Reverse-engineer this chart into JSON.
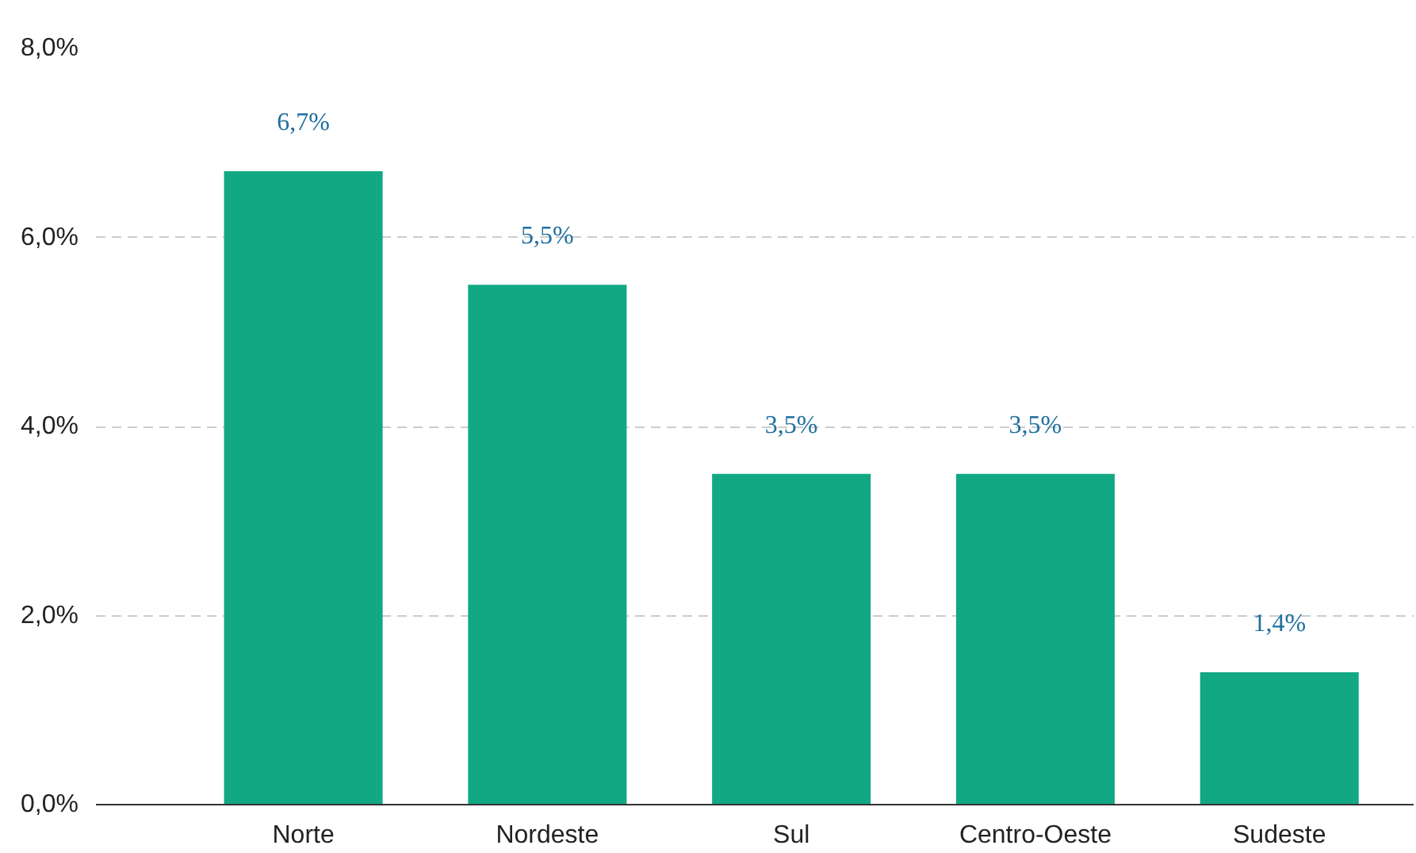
{
  "chart_data": {
    "type": "bar",
    "categories": [
      "Norte",
      "Nordeste",
      "Sul",
      "Centro-Oeste",
      "Sudeste"
    ],
    "values": [
      6.7,
      5.5,
      3.5,
      3.5,
      1.4
    ],
    "value_labels": [
      "6,7%",
      "5,5%",
      "3,5%",
      "3,5%",
      "1,4%"
    ],
    "color": "#12a884",
    "ylim": [
      0,
      8
    ],
    "yticks": [
      {
        "value": 0,
        "label": "0,0%"
      },
      {
        "value": 2,
        "label": "2,0%"
      },
      {
        "value": 4,
        "label": "4,0%"
      },
      {
        "value": 6,
        "label": "6,0%"
      },
      {
        "value": 8,
        "label": "8,0%"
      }
    ],
    "grid": "y"
  }
}
